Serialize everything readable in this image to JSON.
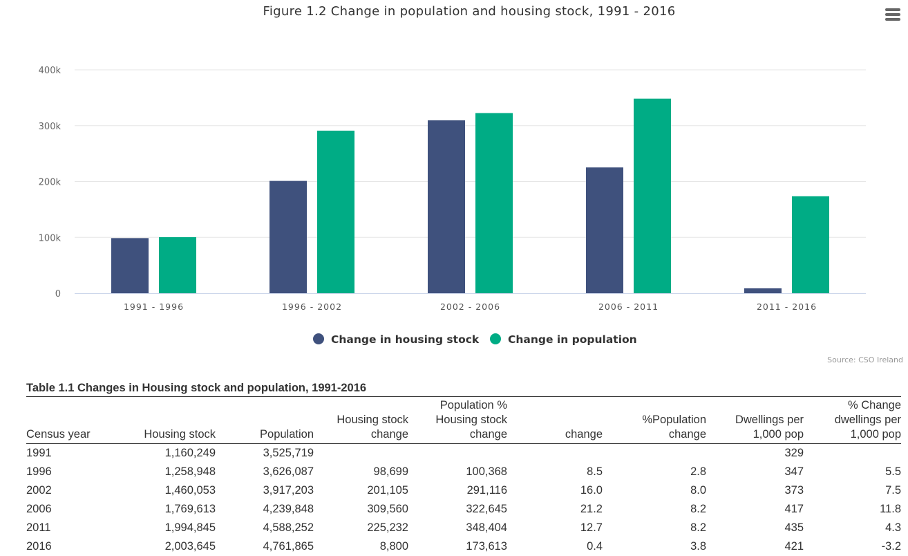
{
  "title": "Figure 1.2 Change in population and housing stock, 1991 - 2016",
  "menu_icon": "hamburger-menu-icon",
  "source": "Source: CSO Ireland",
  "colors": {
    "housing": "#3f517d",
    "population": "#00ac85",
    "grid": "#e6e6e6",
    "axis": "#ccd6eb"
  },
  "chart_data": {
    "type": "bar",
    "categories": [
      "1991 - 1996",
      "1996 - 2002",
      "2002 - 2006",
      "2006 - 2011",
      "2011 - 2016"
    ],
    "series": [
      {
        "name": "Change in housing stock",
        "values": [
          98699,
          201105,
          309560,
          225232,
          8800
        ]
      },
      {
        "name": "Change in population",
        "values": [
          100368,
          291116,
          322645,
          348404,
          173613
        ]
      }
    ],
    "ylim": [
      0,
      400000
    ],
    "yticks": [
      0,
      100000,
      200000,
      300000,
      400000
    ],
    "ytick_labels": [
      "0",
      "100k",
      "200k",
      "300k",
      "400k"
    ],
    "grid": true,
    "legend": "bottom-center"
  },
  "table": {
    "title": "Table 1.1 Changes in Housing stock and population, 1991-2016",
    "headers": [
      [
        "Census year"
      ],
      [
        "Housing stock"
      ],
      [
        "Population"
      ],
      [
        "Housing stock",
        "change"
      ],
      [
        "Population % Housing stock",
        "change"
      ],
      [
        "change"
      ],
      [
        "%Population",
        "change"
      ],
      [
        "Dwellings per",
        "1,000 pop"
      ],
      [
        "% Change",
        "dwellings per",
        "1,000 pop"
      ]
    ],
    "rows": [
      [
        "1991",
        "1,160,249",
        "3,525,719",
        "",
        "",
        "",
        "",
        "329",
        ""
      ],
      [
        "1996",
        "1,258,948",
        "3,626,087",
        "98,699",
        "100,368",
        "8.5",
        "2.8",
        "347",
        "5.5"
      ],
      [
        "2002",
        "1,460,053",
        "3,917,203",
        "201,105",
        "291,116",
        "16.0",
        "8.0",
        "373",
        "7.5"
      ],
      [
        "2006",
        "1,769,613",
        "4,239,848",
        "309,560",
        "322,645",
        "21.2",
        "8.2",
        "417",
        "11.8"
      ],
      [
        "2011",
        "1,994,845",
        "4,588,252",
        "225,232",
        "348,404",
        "12.7",
        "8.2",
        "435",
        "4.3"
      ],
      [
        "2016",
        "2,003,645",
        "4,761,865",
        "8,800",
        "173,613",
        "0.4",
        "3.8",
        "421",
        "-3.2"
      ]
    ]
  }
}
